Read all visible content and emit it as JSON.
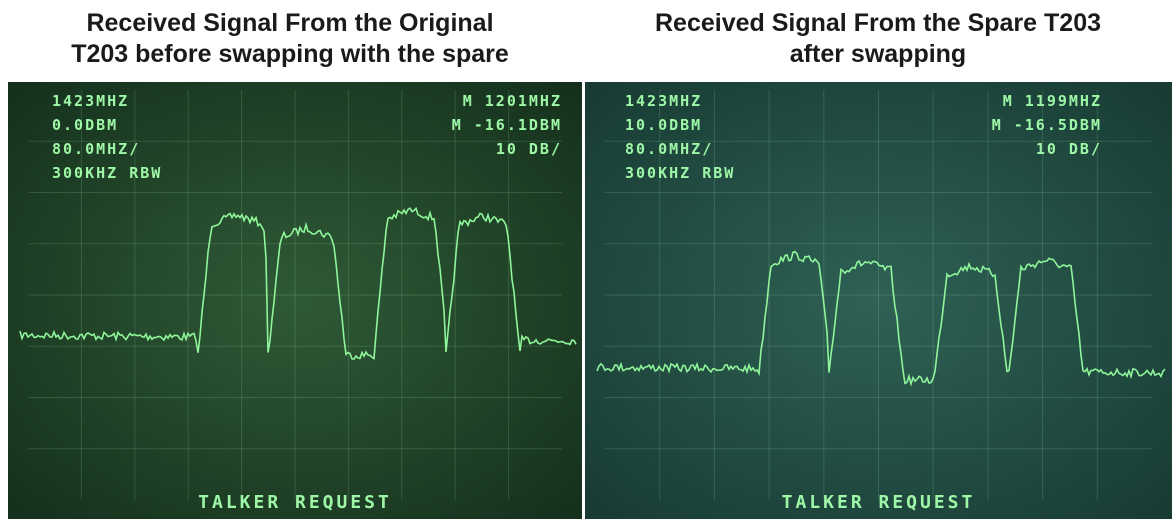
{
  "panels": [
    {
      "caption": [
        "Received Signal From the Original",
        "T203 before swapping with the spare"
      ],
      "readouts_left": [
        "1423MHZ",
        "0.0DBM",
        "80.0MHZ/",
        "300KHZ RBW"
      ],
      "readouts_right": [
        "M 1201MHZ",
        "M -16.1DBM",
        "10 DB/"
      ],
      "footer": "TALKER REQUEST"
    },
    {
      "caption": [
        "Received Signal From the Spare T203",
        "after swapping"
      ],
      "readouts_left": [
        "1423MHZ",
        "10.0DBM",
        "80.0MHZ/",
        "300KHZ RBW"
      ],
      "readouts_right": [
        "M 1199MHZ",
        "M -16.5DBM",
        "10 DB/"
      ],
      "footer": "TALKER REQUEST"
    }
  ]
}
